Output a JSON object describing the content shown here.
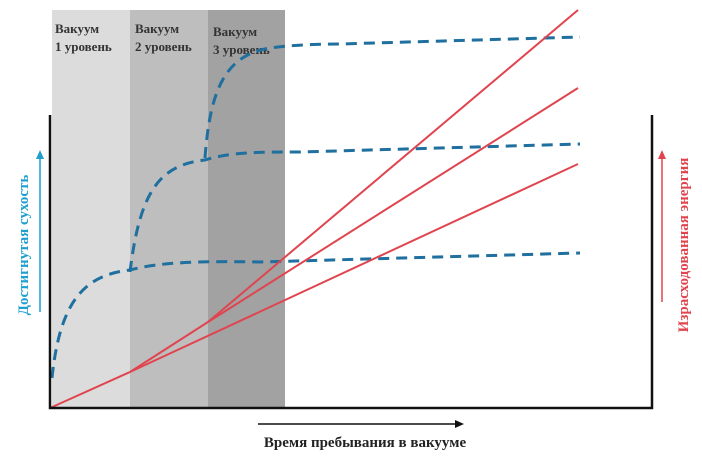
{
  "bands": [
    {
      "line1": "Вакуум",
      "line2": "1 уровень",
      "color": "#dcdcdc"
    },
    {
      "line1": "Вакуум",
      "line2": "2 уровень",
      "color": "#bebebe"
    },
    {
      "line1": "Вакуум",
      "line2": "3 уровень",
      "color": "#a2a2a2"
    }
  ],
  "axes": {
    "x_label": "Время пребывания в вакууме",
    "left_label": "Достигнутая сухость",
    "right_label": "Израсходованная энергия"
  },
  "colors": {
    "dryness": "#1f6f9f",
    "energy": "#e0454f",
    "axis": "#111111"
  }
}
